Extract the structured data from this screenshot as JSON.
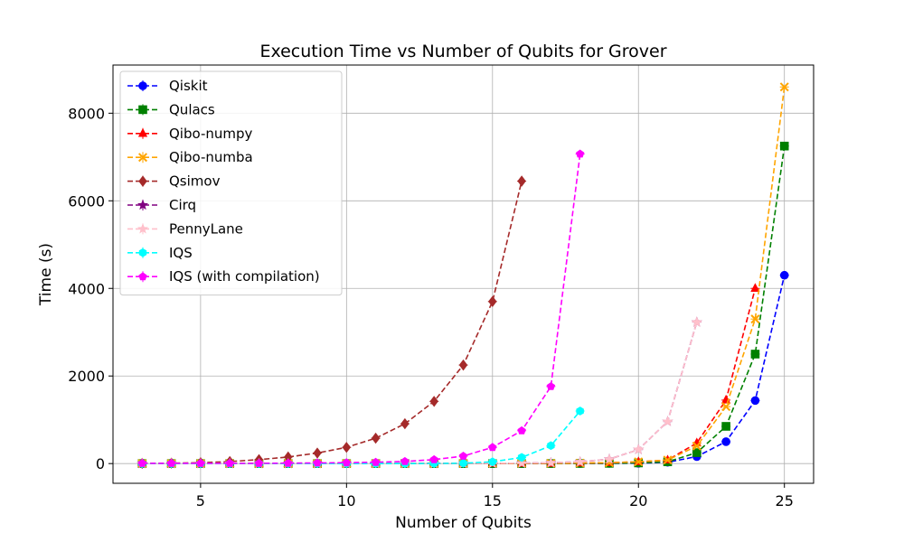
{
  "chart_data": {
    "type": "line",
    "title": "Execution Time vs Number of Qubits for Grover",
    "xlabel": "Number of Qubits",
    "ylabel": "Time (s)",
    "xlim": [
      2.0,
      26.0
    ],
    "ylim": [
      -450,
      9100
    ],
    "xticks": [
      5,
      10,
      15,
      20,
      25
    ],
    "yticks": [
      0,
      2000,
      4000,
      6000,
      8000
    ],
    "grid": true,
    "legend_position": "upper left",
    "series": [
      {
        "name": "Qiskit",
        "color": "#0000ff",
        "marker": "circle",
        "x": [
          3,
          4,
          5,
          6,
          7,
          8,
          9,
          10,
          11,
          12,
          13,
          14,
          15,
          16,
          17,
          18,
          19,
          20,
          21,
          22,
          23,
          24,
          25
        ],
        "y": [
          0,
          0,
          0,
          0,
          0,
          0,
          0,
          0,
          0,
          0,
          0,
          0,
          0,
          0,
          1,
          2,
          4,
          8,
          30,
          160,
          500,
          1440,
          4300
        ]
      },
      {
        "name": "Qulacs",
        "color": "#008000",
        "marker": "square",
        "x": [
          3,
          4,
          5,
          6,
          7,
          8,
          9,
          10,
          11,
          12,
          13,
          14,
          15,
          16,
          17,
          18,
          19,
          20,
          21,
          22,
          23,
          24,
          25
        ],
        "y": [
          0,
          0,
          0,
          0,
          0,
          0,
          0,
          0,
          0,
          0,
          0,
          0,
          0,
          0,
          1,
          3,
          6,
          15,
          40,
          250,
          850,
          2500,
          7250
        ]
      },
      {
        "name": "Qibo-numpy",
        "color": "#ff0000",
        "marker": "triangle-up",
        "x": [
          3,
          4,
          5,
          6,
          7,
          8,
          9,
          10,
          11,
          12,
          13,
          14,
          15,
          16,
          17,
          18,
          19,
          20,
          21,
          22,
          23,
          24
        ],
        "y": [
          0,
          0,
          0,
          0,
          0,
          0,
          0,
          0,
          0,
          0,
          0,
          1,
          2,
          3,
          5,
          10,
          20,
          40,
          80,
          470,
          1450,
          4000
        ]
      },
      {
        "name": "Qibo-numba",
        "color": "#ffa500",
        "marker": "x",
        "x": [
          3,
          4,
          5,
          6,
          7,
          8,
          9,
          10,
          11,
          12,
          13,
          14,
          15,
          16,
          17,
          18,
          19,
          20,
          21,
          22,
          23,
          24,
          25
        ],
        "y": [
          0,
          0,
          0,
          0,
          0,
          0,
          0,
          0,
          0,
          0,
          0,
          1,
          2,
          3,
          5,
          10,
          20,
          40,
          80,
          400,
          1300,
          3300,
          8600
        ]
      },
      {
        "name": "Qsimov",
        "color": "#a52a2a",
        "marker": "diamond",
        "x": [
          3,
          4,
          5,
          6,
          7,
          8,
          9,
          10,
          11,
          12,
          13,
          14,
          15,
          16
        ],
        "y": [
          5,
          10,
          20,
          45,
          90,
          150,
          240,
          370,
          580,
          910,
          1420,
          2250,
          3700,
          6450
        ]
      },
      {
        "name": "Cirq",
        "color": "#800080",
        "marker": "star",
        "x": [
          3,
          4,
          5,
          6,
          7,
          8,
          9,
          10,
          11,
          12,
          13,
          14,
          15,
          16,
          17,
          18,
          19,
          20,
          21,
          22
        ],
        "y": [
          0,
          0,
          0,
          0,
          0,
          0,
          0,
          0,
          1,
          1,
          2,
          4,
          6,
          10,
          20,
          40,
          100,
          320,
          960,
          3230
        ]
      },
      {
        "name": "PennyLane",
        "color": "#ffc0cb",
        "marker": "star",
        "x": [
          3,
          4,
          5,
          6,
          7,
          8,
          9,
          10,
          11,
          12,
          13,
          14,
          15,
          16,
          17,
          18,
          19,
          20,
          21,
          22
        ],
        "y": [
          0,
          0,
          0,
          0,
          0,
          0,
          0,
          0,
          1,
          1,
          2,
          4,
          6,
          10,
          20,
          40,
          100,
          320,
          960,
          3230
        ]
      },
      {
        "name": "IQS",
        "color": "#00ffff",
        "marker": "hexagon",
        "x": [
          3,
          4,
          5,
          6,
          7,
          8,
          9,
          10,
          11,
          12,
          13,
          14,
          15,
          16,
          17,
          18
        ],
        "y": [
          0,
          0,
          0,
          0,
          0,
          0,
          0,
          0,
          0,
          0,
          2,
          8,
          40,
          140,
          410,
          1200
        ]
      },
      {
        "name": "IQS (with compilation)",
        "color": "#ff00ff",
        "marker": "pentagon",
        "x": [
          3,
          4,
          5,
          6,
          7,
          8,
          9,
          10,
          11,
          12,
          13,
          14,
          15,
          16,
          17,
          18
        ],
        "y": [
          5,
          5,
          5,
          5,
          5,
          10,
          15,
          20,
          30,
          50,
          90,
          170,
          370,
          750,
          1760,
          7070
        ]
      }
    ]
  }
}
